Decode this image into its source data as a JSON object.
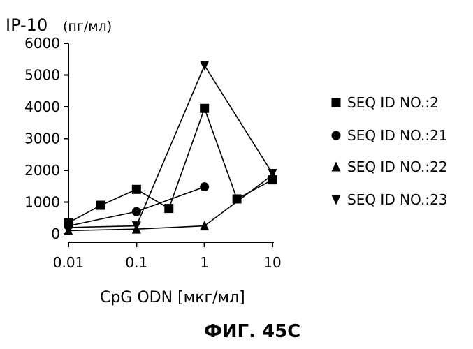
{
  "chart_data": {
    "type": "line",
    "ylabel": "IP-10",
    "ylabel_unit": "(пг/мл)",
    "xlabel": "CpG ODN [мкг/мл]",
    "x_scale": "log",
    "xlim": [
      0.01,
      10
    ],
    "ylim": [
      0,
      6000
    ],
    "x_ticks": [
      "0.01",
      "0.1",
      "1",
      "10"
    ],
    "y_ticks": [
      "0",
      "1000",
      "2000",
      "3000",
      "4000",
      "5000",
      "6000"
    ],
    "grid": false,
    "legend_position": "right",
    "series": [
      {
        "name": "SEQ ID NO.:2",
        "marker": "square",
        "points": [
          [
            0.01,
            350
          ],
          [
            0.03,
            900
          ],
          [
            0.1,
            1400
          ],
          [
            0.3,
            800
          ],
          [
            1,
            3950
          ],
          [
            3,
            1100
          ],
          [
            10,
            1700
          ]
        ]
      },
      {
        "name": "SEQ ID NO.:21",
        "marker": "circle",
        "points": [
          [
            0.01,
            250
          ],
          [
            0.1,
            700
          ],
          [
            1,
            1480
          ]
        ]
      },
      {
        "name": "SEQ ID NO.:22",
        "marker": "triangle-up",
        "points": [
          [
            0.01,
            100
          ],
          [
            0.1,
            150
          ],
          [
            1,
            250
          ],
          [
            10,
            1850
          ]
        ]
      },
      {
        "name": "SEQ ID NO.:23",
        "marker": "triangle-down",
        "points": [
          [
            0.01,
            200
          ],
          [
            0.1,
            250
          ],
          [
            1,
            5300
          ],
          [
            10,
            1900
          ]
        ]
      }
    ]
  },
  "caption": "ФИГ. 45С"
}
